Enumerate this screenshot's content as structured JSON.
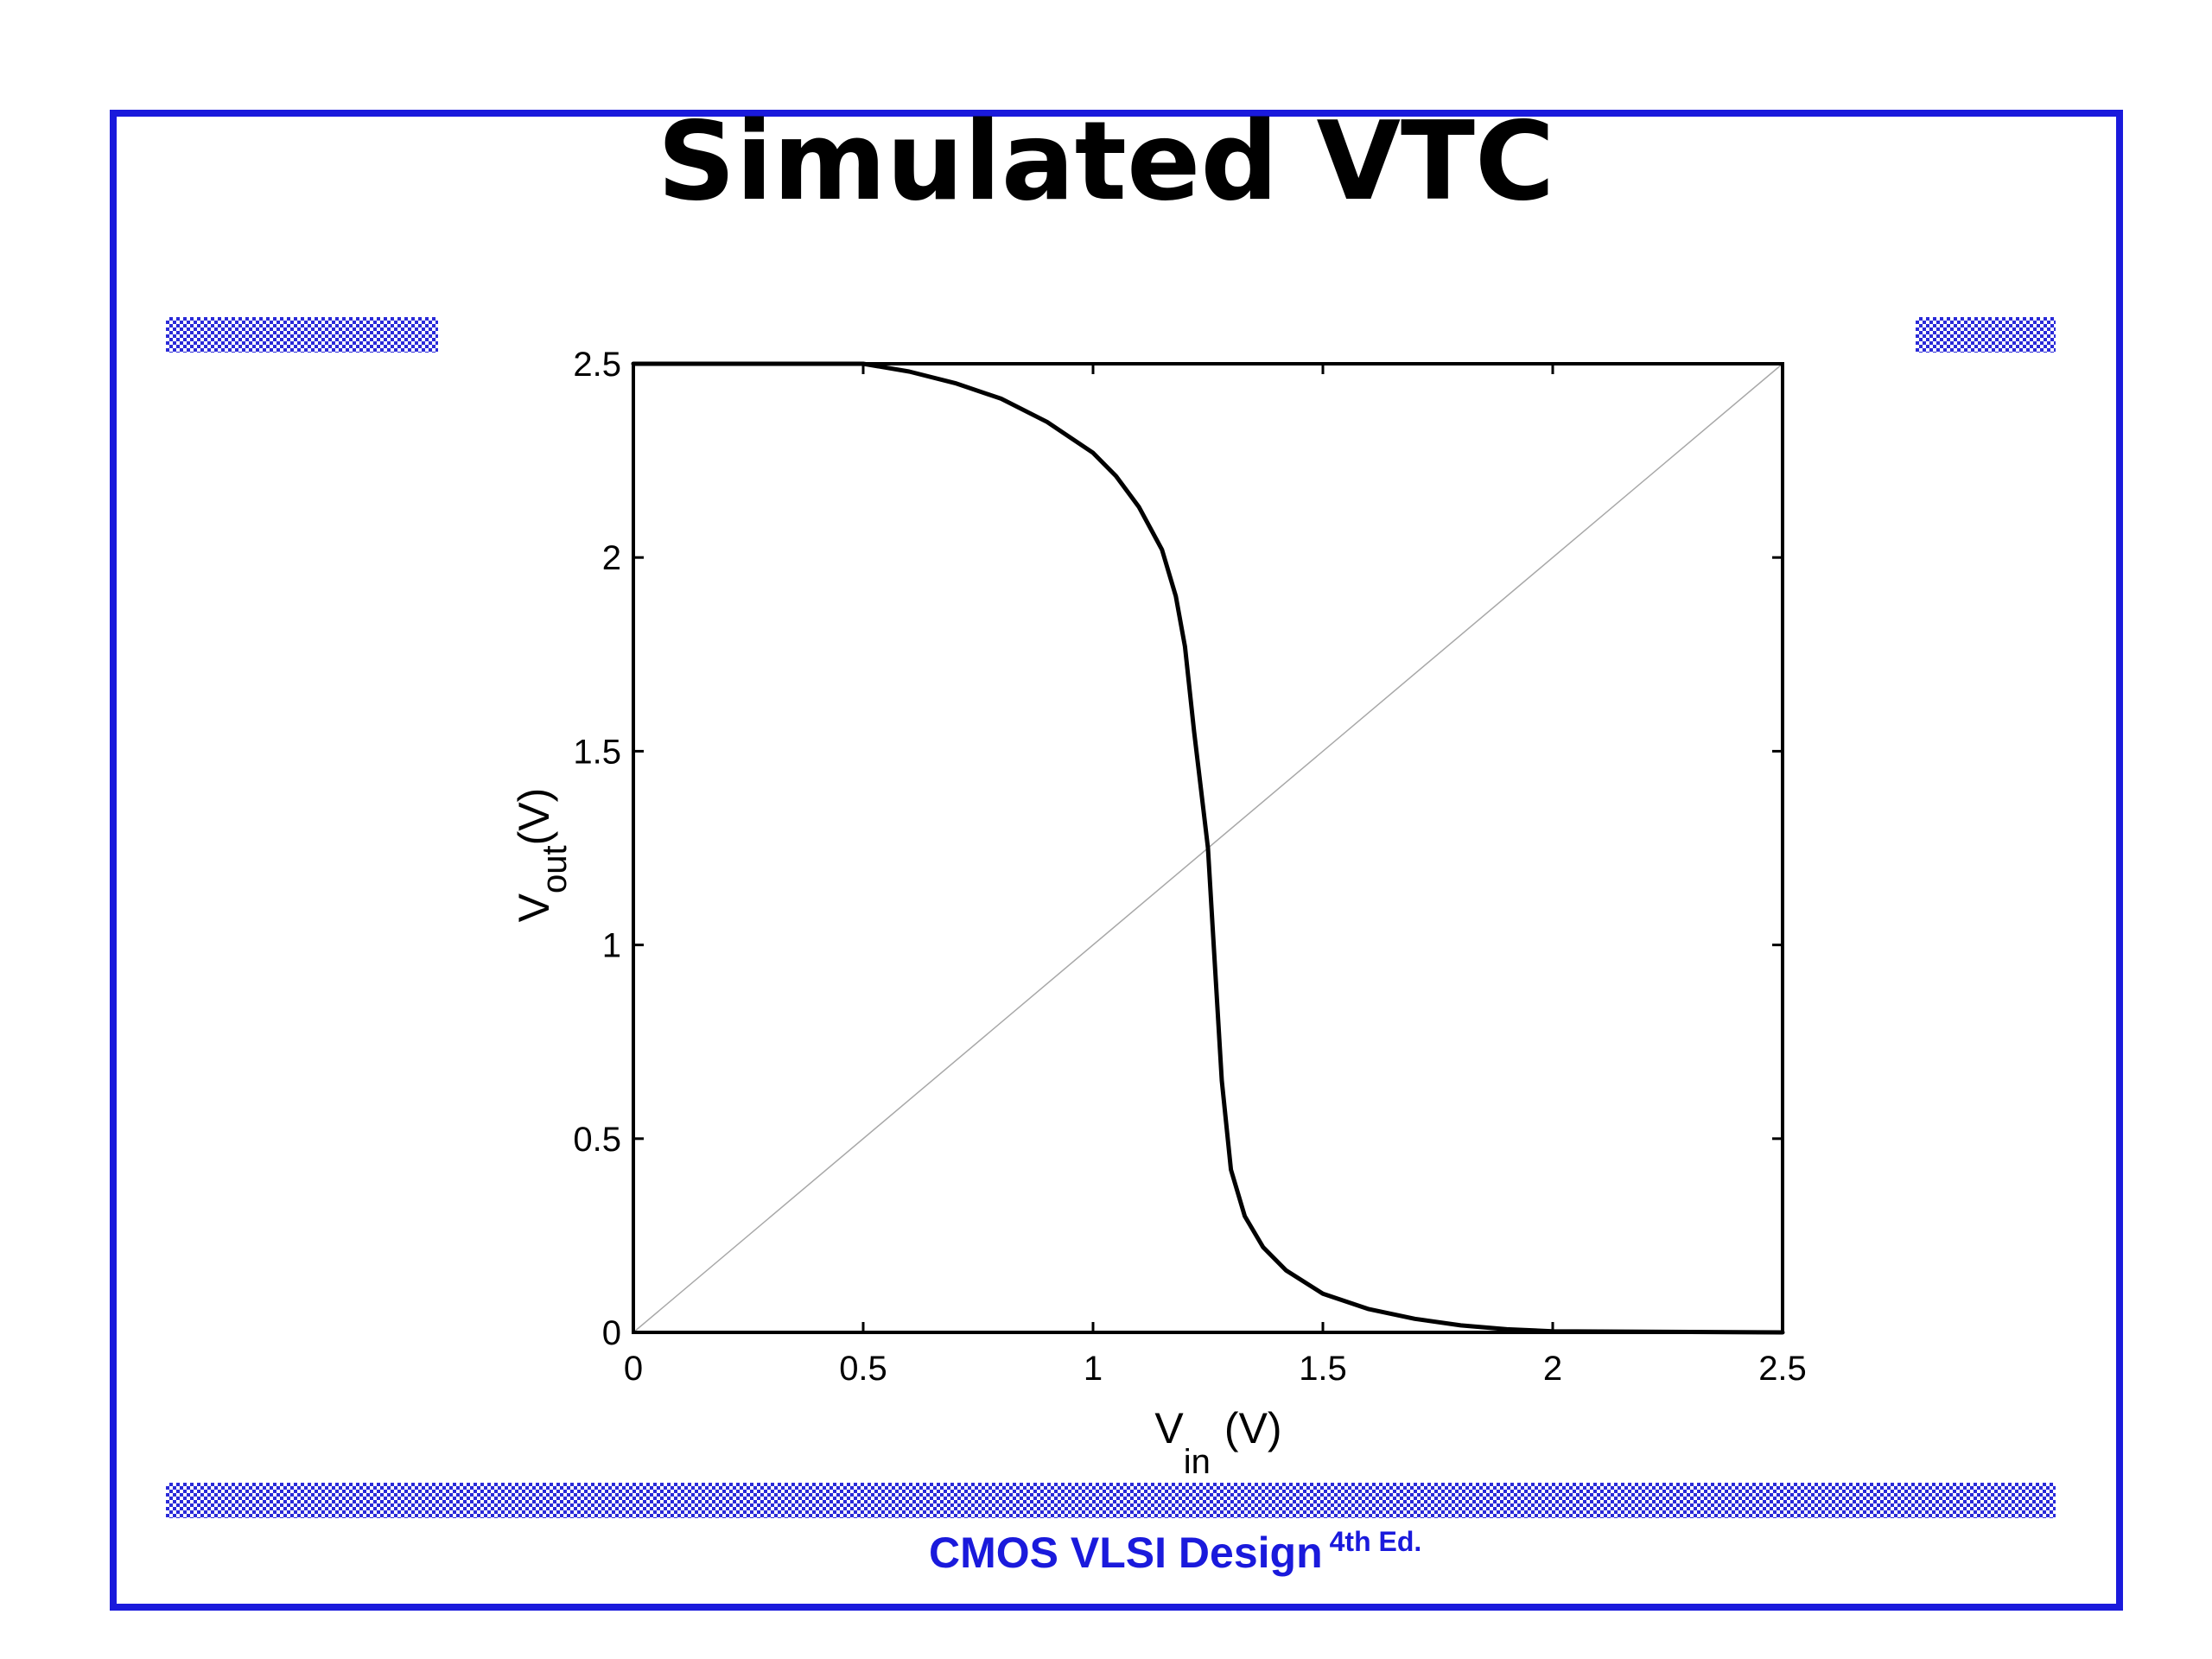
{
  "slide": {
    "title": "Simulated VTC",
    "footer": "CMOS VLSI Design",
    "footer_edition": "4th Ed.",
    "frame_color": "#1a1adc"
  },
  "chart_data": {
    "type": "line",
    "xlabel_main": "V",
    "xlabel_sub": "in",
    "xlabel_unit": "(V)",
    "ylabel_main": "V",
    "ylabel_sub": "out",
    "ylabel_unit": "(V)",
    "xlim": [
      0,
      2.5
    ],
    "ylim": [
      0,
      2.5
    ],
    "x_ticks": [
      "0",
      "0.5",
      "1",
      "1.5",
      "2",
      "2.5"
    ],
    "y_ticks": [
      "0",
      "0.5",
      "1",
      "1.5",
      "2",
      "2.5"
    ],
    "grid": false,
    "series": [
      {
        "style": "thick-black",
        "x": [
          0,
          0.5,
          0.6,
          0.7,
          0.8,
          0.9,
          1.0,
          1.05,
          1.1,
          1.15,
          1.18,
          1.2,
          1.22,
          1.24,
          1.25,
          1.26,
          1.28,
          1.3,
          1.33,
          1.37,
          1.42,
          1.5,
          1.6,
          1.7,
          1.8,
          1.9,
          2.0,
          2.5
        ],
        "y": [
          2.5,
          2.5,
          2.48,
          2.45,
          2.41,
          2.35,
          2.27,
          2.21,
          2.13,
          2.02,
          1.9,
          1.77,
          1.55,
          1.35,
          1.25,
          1.05,
          0.65,
          0.42,
          0.3,
          0.22,
          0.16,
          0.1,
          0.06,
          0.035,
          0.018,
          0.008,
          0.003,
          0
        ]
      },
      {
        "style": "thin-gray",
        "x": [
          0,
          2.5
        ],
        "y": [
          0,
          2.5
        ]
      }
    ]
  }
}
